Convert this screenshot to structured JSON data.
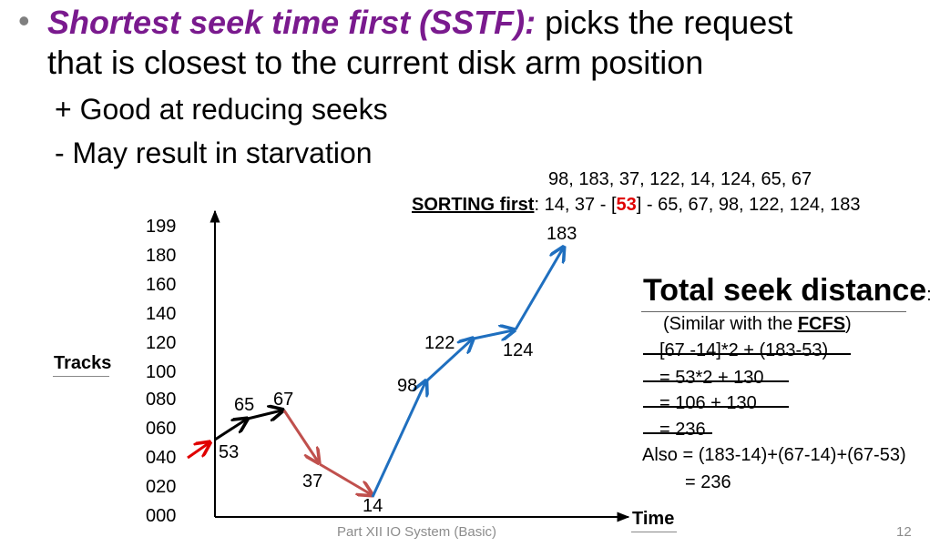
{
  "heading": {
    "bullet": "•",
    "term": "Shortest seek time first (SSTF):",
    "text1": " picks the request",
    "text2": "that is closest to the current disk arm position"
  },
  "pros": "+ Good at reducing seeks",
  "cons": "- May result in starvation",
  "request_sequence": "98, 183, 37, 122, 14, 124, 65, 67",
  "sorting": {
    "label": "SORTING first",
    "colon": ": 14, 37 - [",
    "current": "53",
    "rest": "] - 65, 67, 98, 122, 124, 183"
  },
  "chart_data": {
    "type": "line",
    "ylabel": "Tracks",
    "xlabel": "Time",
    "yticks": [
      "199",
      "180",
      "160",
      "140",
      "120",
      "100",
      "080",
      "060",
      "040",
      "020",
      "000"
    ],
    "ylim": [
      0,
      199
    ],
    "start": 53,
    "path": [
      53,
      65,
      67,
      37,
      14,
      98,
      122,
      124,
      183
    ],
    "colors": {
      "start": "#e00000",
      "up_near": "#000000",
      "down": "#c0504d",
      "up_far": "#1f6fbf"
    }
  },
  "total": {
    "title": "Total seek distance",
    "colon": ":",
    "similar_prefix": "(Similar with the ",
    "similar_bold": "FCFS",
    "similar_suffix": ")",
    "lines": [
      "[67 -14]*2 + (183-53)",
      "= 53*2 + 130",
      "= 106 + 130",
      "= 236"
    ],
    "also": "Also = (183-14)+(67-14)+(67-53)",
    "also_result": "= 236"
  },
  "footer": "Part XII IO System (Basic)",
  "page_number": "12"
}
